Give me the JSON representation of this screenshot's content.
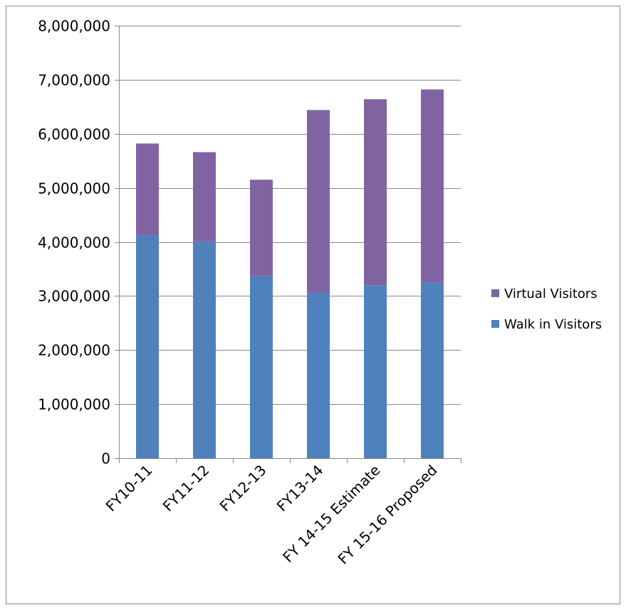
{
  "chart_data": {
    "type": "bar",
    "stacked": true,
    "title": "",
    "xlabel": "",
    "ylabel": "",
    "categories": [
      "FY10-11",
      "FY11-12",
      "FY12-13",
      "FY13-14",
      "FY 14-15 Estimate",
      "FY 15-16 Proposed"
    ],
    "series": [
      {
        "name": "Walk in Visitors",
        "color": "#4f81bd",
        "values": [
          4120000,
          4010000,
          3370000,
          3060000,
          3200000,
          3250000
        ]
      },
      {
        "name": "Virtual Visitors",
        "color": "#8064a2",
        "values": [
          1700000,
          1650000,
          1780000,
          3380000,
          3440000,
          3570000
        ]
      }
    ],
    "ylim": [
      0,
      8000000
    ],
    "yticks": [
      0,
      1000000,
      2000000,
      3000000,
      4000000,
      5000000,
      6000000,
      7000000,
      8000000
    ],
    "ytick_labels": [
      "0",
      "1,000,000",
      "2,000,000",
      "3,000,000",
      "4,000,000",
      "5,000,000",
      "6,000,000",
      "7,000,000",
      "8,000,000"
    ],
    "grid": true,
    "legend_position": "right",
    "legend_order": [
      "Virtual Visitors",
      "Walk in Visitors"
    ]
  }
}
